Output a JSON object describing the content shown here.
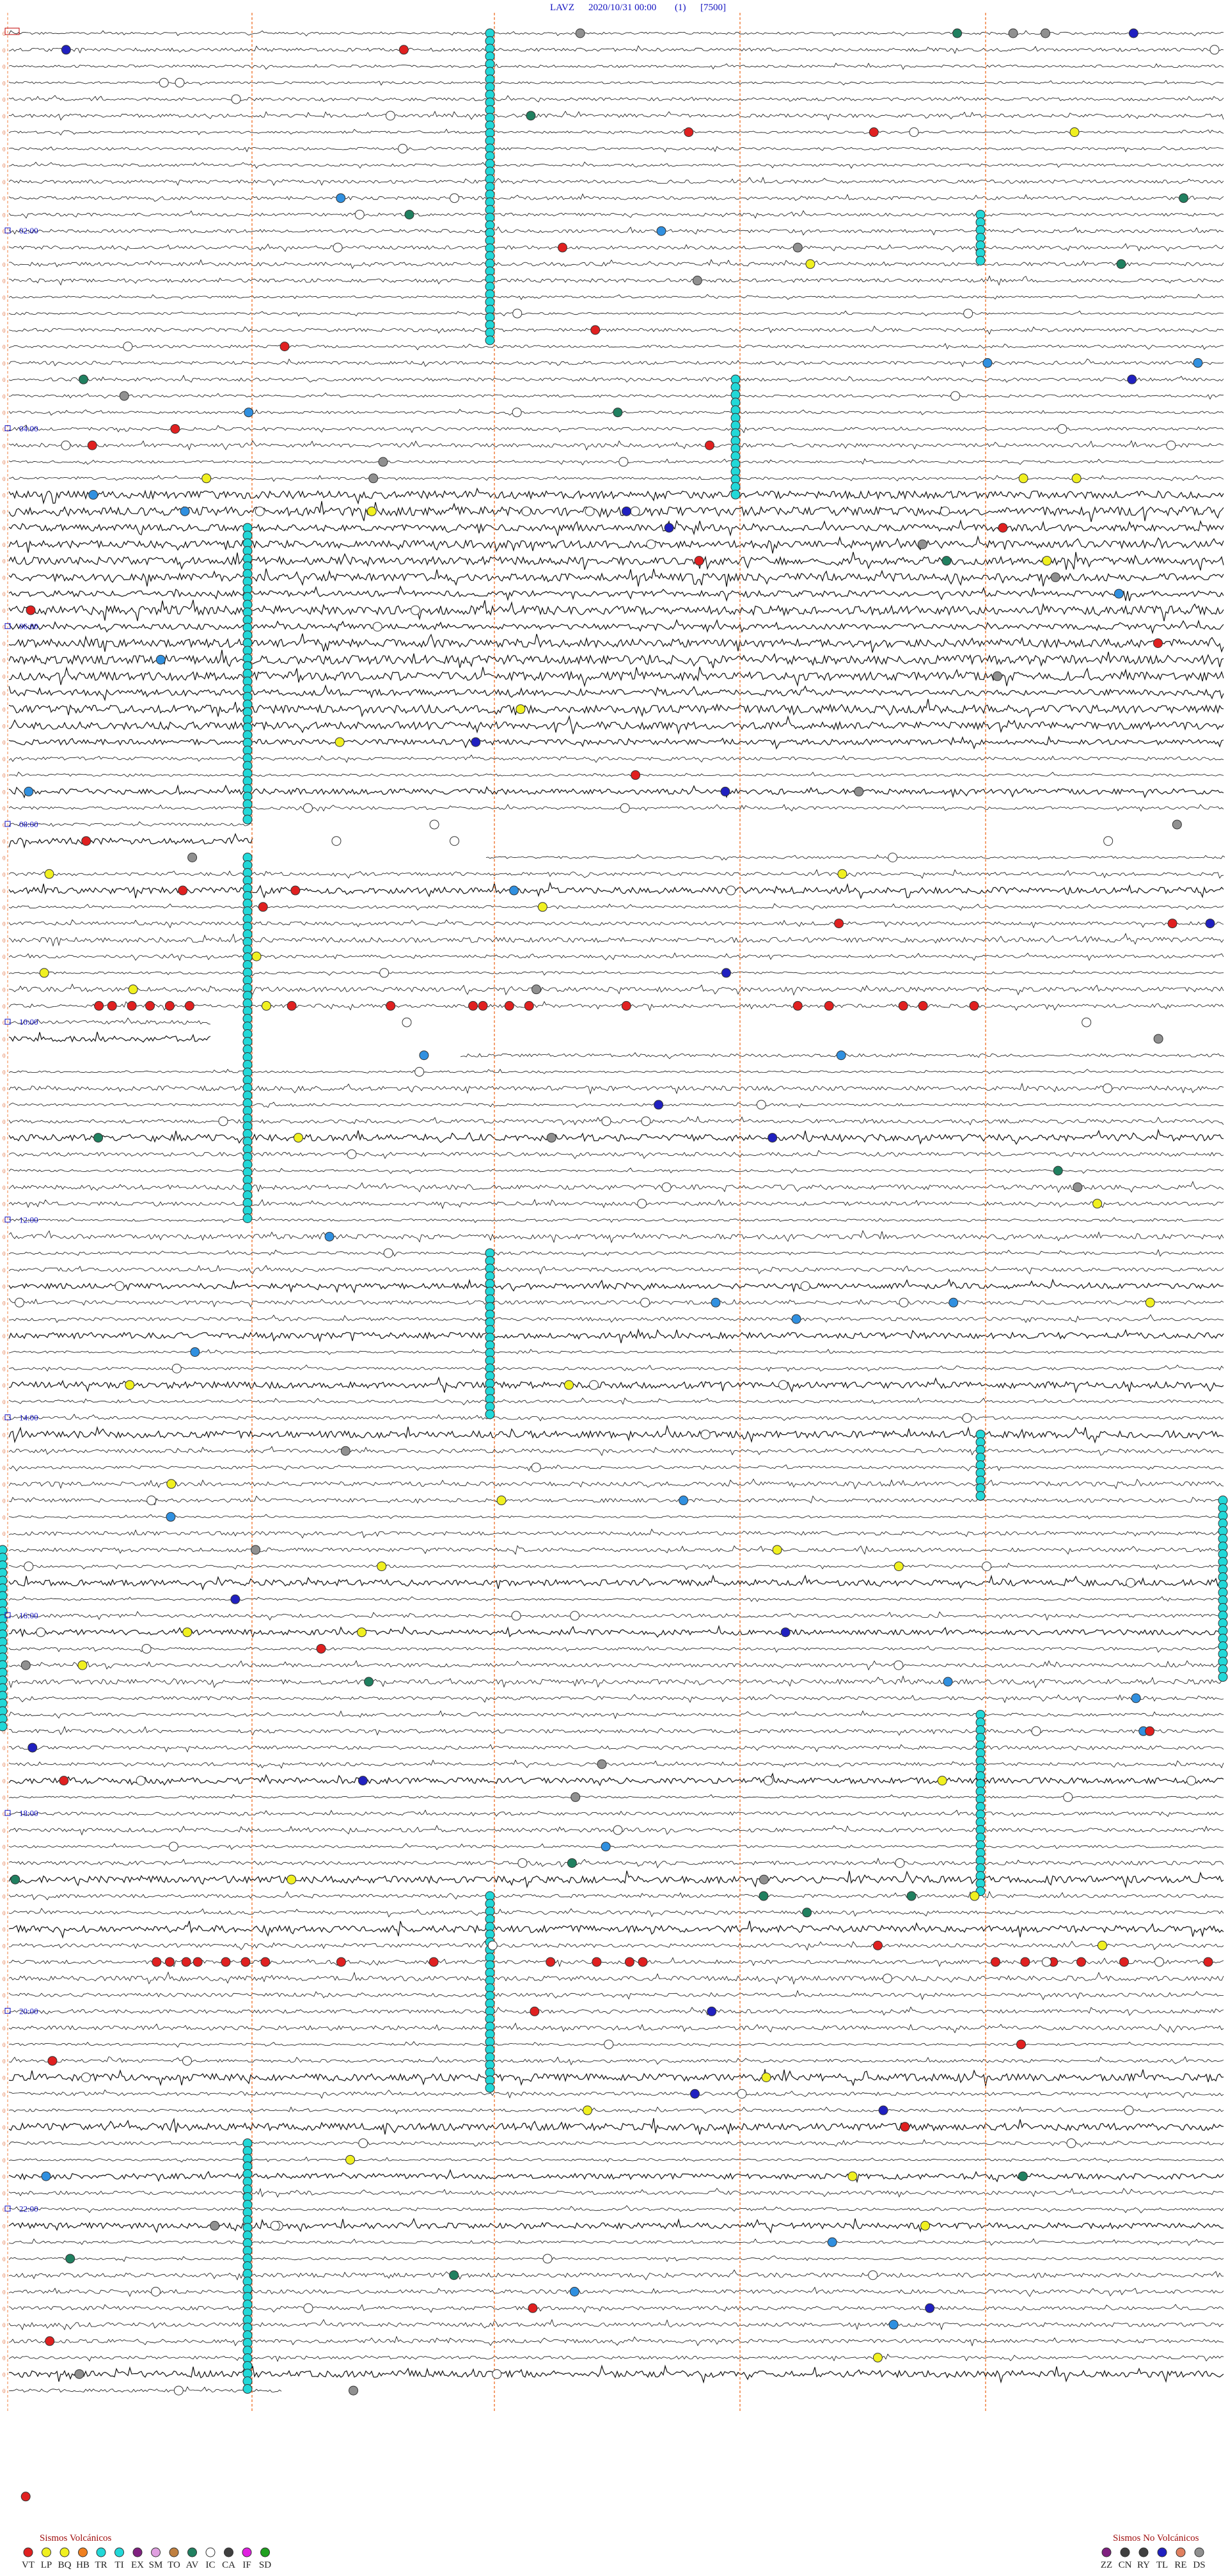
{
  "header": {
    "station": "LAVZ",
    "datetime": "2020/10/31 00:00",
    "channel": "(1)",
    "scale": "[7500]"
  },
  "hour_labels": [
    "02:00",
    "04:00",
    "06:00",
    "08:00",
    "10:00",
    "12:00",
    "14:00",
    "16:00",
    "18:00",
    "20:00",
    "22:00"
  ],
  "legend": {
    "volcanic_title": "Sismos Volcánicos",
    "volcanic": [
      "VT",
      "LP",
      "BQ",
      "HB",
      "TR",
      "TI",
      "EX",
      "SM",
      "TO",
      "AV",
      "IC",
      "CA",
      "IF",
      "SD"
    ],
    "non_volcanic_title": "Sismos No Volcánicos",
    "non_volcanic": [
      "ZZ",
      "CN",
      "RY",
      "TL",
      "RE",
      "DS"
    ]
  }
}
